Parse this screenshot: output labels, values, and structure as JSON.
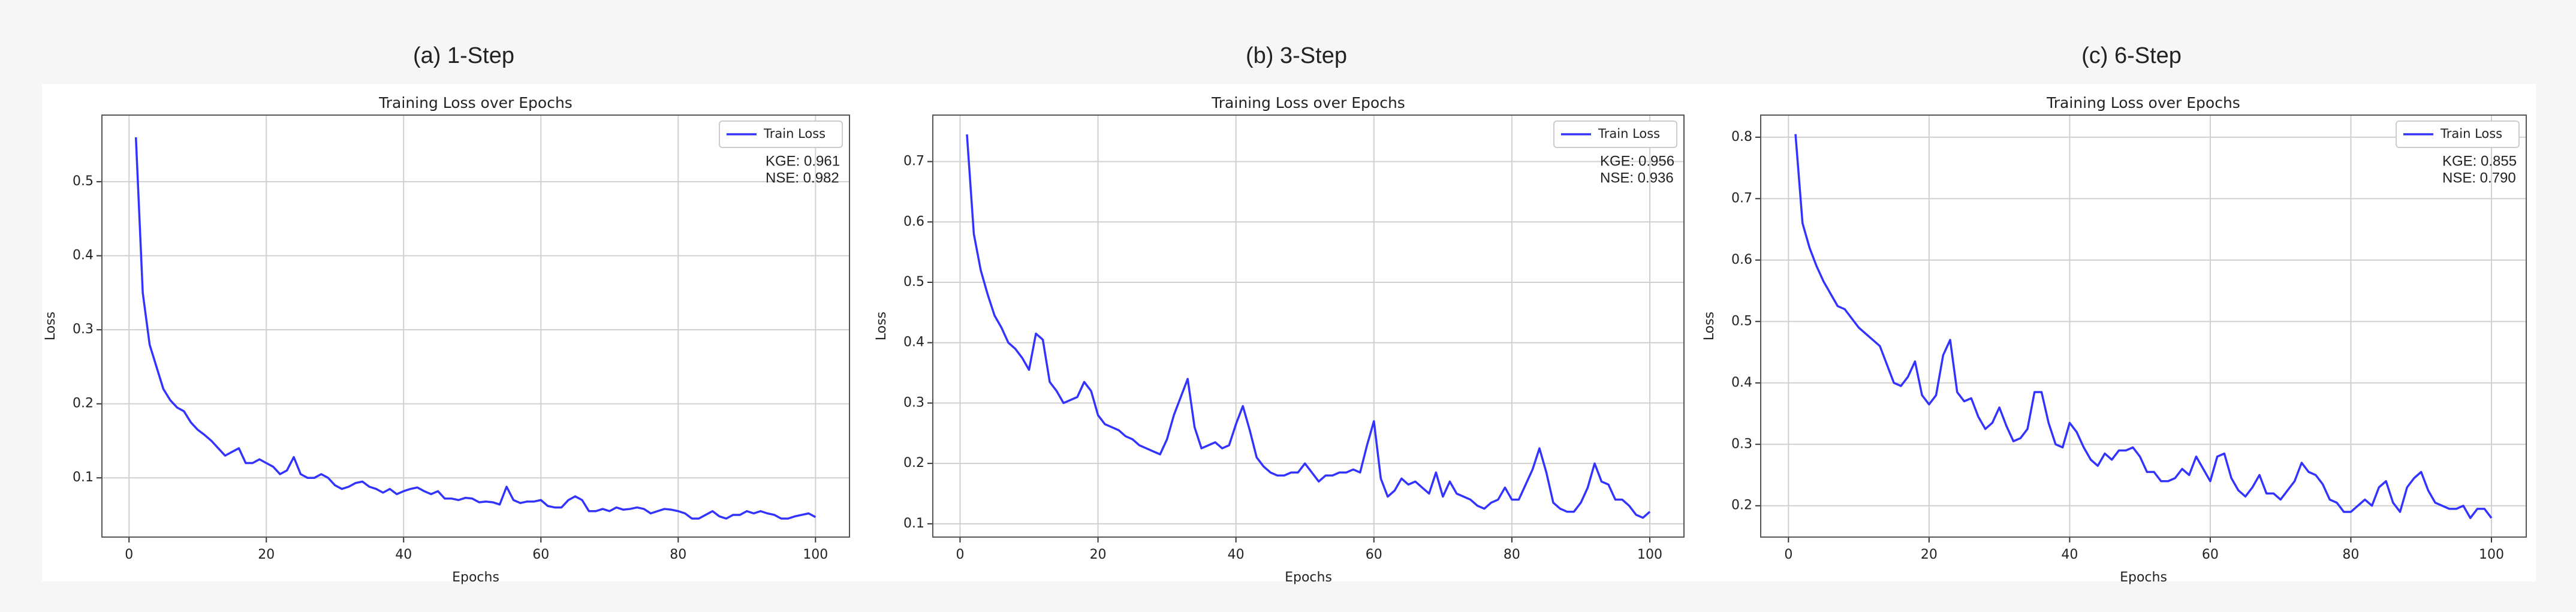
{
  "chart_data": [
    {
      "type": "line",
      "panel_label": "(a) 1-Step",
      "title": "Training Loss over Epochs",
      "xlabel": "Epochs",
      "ylabel": "Loss",
      "x": [
        1,
        2,
        3,
        4,
        5,
        6,
        7,
        8,
        9,
        10,
        11,
        12,
        13,
        14,
        15,
        16,
        17,
        18,
        19,
        20,
        21,
        22,
        23,
        24,
        25,
        26,
        27,
        28,
        29,
        30,
        31,
        32,
        33,
        34,
        35,
        36,
        37,
        38,
        39,
        40,
        41,
        42,
        43,
        44,
        45,
        46,
        47,
        48,
        49,
        50,
        51,
        52,
        53,
        54,
        55,
        56,
        57,
        58,
        59,
        60,
        61,
        62,
        63,
        64,
        65,
        66,
        67,
        68,
        69,
        70,
        71,
        72,
        73,
        74,
        75,
        76,
        77,
        78,
        79,
        80,
        81,
        82,
        83,
        84,
        85,
        86,
        87,
        88,
        89,
        90,
        91,
        92,
        93,
        94,
        95,
        96,
        97,
        98,
        99,
        100
      ],
      "series": [
        {
          "name": "Train Loss",
          "color": "#3333ff",
          "values": [
            0.56,
            0.35,
            0.28,
            0.25,
            0.22,
            0.205,
            0.195,
            0.19,
            0.175,
            0.165,
            0.158,
            0.15,
            0.14,
            0.13,
            0.135,
            0.14,
            0.12,
            0.12,
            0.125,
            0.12,
            0.115,
            0.105,
            0.11,
            0.128,
            0.105,
            0.1,
            0.1,
            0.105,
            0.1,
            0.09,
            0.085,
            0.088,
            0.093,
            0.095,
            0.088,
            0.085,
            0.08,
            0.085,
            0.078,
            0.082,
            0.085,
            0.087,
            0.082,
            0.078,
            0.082,
            0.072,
            0.072,
            0.07,
            0.073,
            0.072,
            0.067,
            0.068,
            0.067,
            0.064,
            0.088,
            0.07,
            0.066,
            0.068,
            0.068,
            0.07,
            0.062,
            0.06,
            0.06,
            0.07,
            0.075,
            0.07,
            0.055,
            0.055,
            0.058,
            0.055,
            0.06,
            0.057,
            0.058,
            0.06,
            0.058,
            0.052,
            0.055,
            0.058,
            0.057,
            0.055,
            0.052,
            0.045,
            0.045,
            0.05,
            0.055,
            0.048,
            0.045,
            0.05,
            0.05,
            0.055,
            0.052,
            0.055,
            0.052,
            0.05,
            0.045,
            0.045,
            0.048,
            0.05,
            0.052,
            0.047
          ]
        }
      ],
      "annotations": [
        "KGE: 0.961",
        "NSE: 0.982"
      ],
      "xlim": [
        -3.95,
        104.95
      ],
      "ylim": [
        0.02,
        0.59
      ],
      "xticks": [
        0,
        20,
        40,
        60,
        80,
        100
      ],
      "yticks": [
        0.1,
        0.2,
        0.3,
        0.4,
        0.5
      ],
      "grid": true,
      "legend": "upper right"
    },
    {
      "type": "line",
      "panel_label": "(b) 3-Step",
      "title": "Training Loss over Epochs",
      "xlabel": "Epochs",
      "ylabel": "Loss",
      "x": [
        1,
        2,
        3,
        4,
        5,
        6,
        7,
        8,
        9,
        10,
        11,
        12,
        13,
        14,
        15,
        16,
        17,
        18,
        19,
        20,
        21,
        22,
        23,
        24,
        25,
        26,
        27,
        28,
        29,
        30,
        31,
        32,
        33,
        34,
        35,
        36,
        37,
        38,
        39,
        40,
        41,
        42,
        43,
        44,
        45,
        46,
        47,
        48,
        49,
        50,
        51,
        52,
        53,
        54,
        55,
        56,
        57,
        58,
        59,
        60,
        61,
        62,
        63,
        64,
        65,
        66,
        67,
        68,
        69,
        70,
        71,
        72,
        73,
        74,
        75,
        76,
        77,
        78,
        79,
        80,
        81,
        82,
        83,
        84,
        85,
        86,
        87,
        88,
        89,
        90,
        91,
        92,
        93,
        94,
        95,
        96,
        97,
        98,
        99,
        100
      ],
      "series": [
        {
          "name": "Train Loss",
          "color": "#3333ff",
          "values": [
            0.745,
            0.58,
            0.52,
            0.48,
            0.445,
            0.425,
            0.4,
            0.39,
            0.375,
            0.355,
            0.415,
            0.405,
            0.335,
            0.32,
            0.3,
            0.305,
            0.31,
            0.335,
            0.32,
            0.28,
            0.265,
            0.26,
            0.255,
            0.245,
            0.24,
            0.23,
            0.225,
            0.22,
            0.215,
            0.24,
            0.28,
            0.31,
            0.34,
            0.26,
            0.225,
            0.23,
            0.235,
            0.225,
            0.23,
            0.265,
            0.295,
            0.255,
            0.21,
            0.195,
            0.185,
            0.18,
            0.18,
            0.185,
            0.185,
            0.2,
            0.185,
            0.17,
            0.18,
            0.18,
            0.185,
            0.185,
            0.19,
            0.185,
            0.23,
            0.27,
            0.175,
            0.145,
            0.155,
            0.175,
            0.165,
            0.17,
            0.16,
            0.15,
            0.185,
            0.145,
            0.17,
            0.15,
            0.145,
            0.14,
            0.13,
            0.125,
            0.135,
            0.14,
            0.16,
            0.14,
            0.14,
            0.165,
            0.19,
            0.225,
            0.185,
            0.135,
            0.125,
            0.12,
            0.12,
            0.135,
            0.16,
            0.2,
            0.17,
            0.165,
            0.14,
            0.14,
            0.13,
            0.115,
            0.11,
            0.12
          ]
        }
      ],
      "annotations": [
        "KGE: 0.956",
        "NSE: 0.936"
      ],
      "xlim": [
        -3.95,
        104.95
      ],
      "ylim": [
        0.078,
        0.777
      ],
      "xticks": [
        0,
        20,
        40,
        60,
        80,
        100
      ],
      "yticks": [
        0.1,
        0.2,
        0.3,
        0.4,
        0.5,
        0.6,
        0.7
      ],
      "grid": true,
      "legend": "upper right"
    },
    {
      "type": "line",
      "panel_label": "(c) 6-Step",
      "title": "Training Loss over Epochs",
      "xlabel": "Epochs",
      "ylabel": "Loss",
      "x": [
        1,
        2,
        3,
        4,
        5,
        6,
        7,
        8,
        9,
        10,
        11,
        12,
        13,
        14,
        15,
        16,
        17,
        18,
        19,
        20,
        21,
        22,
        23,
        24,
        25,
        26,
        27,
        28,
        29,
        30,
        31,
        32,
        33,
        34,
        35,
        36,
        37,
        38,
        39,
        40,
        41,
        42,
        43,
        44,
        45,
        46,
        47,
        48,
        49,
        50,
        51,
        52,
        53,
        54,
        55,
        56,
        57,
        58,
        59,
        60,
        61,
        62,
        63,
        64,
        65,
        66,
        67,
        68,
        69,
        70,
        71,
        72,
        73,
        74,
        75,
        76,
        77,
        78,
        79,
        80,
        81,
        82,
        83,
        84,
        85,
        86,
        87,
        88,
        89,
        90,
        91,
        92,
        93,
        94,
        95,
        96,
        97,
        98,
        99,
        100
      ],
      "series": [
        {
          "name": "Train Loss",
          "color": "#3333ff",
          "values": [
            0.805,
            0.66,
            0.62,
            0.59,
            0.565,
            0.545,
            0.525,
            0.52,
            0.505,
            0.49,
            0.48,
            0.47,
            0.46,
            0.43,
            0.4,
            0.395,
            0.41,
            0.435,
            0.38,
            0.365,
            0.38,
            0.445,
            0.47,
            0.385,
            0.37,
            0.375,
            0.345,
            0.325,
            0.335,
            0.36,
            0.33,
            0.305,
            0.31,
            0.325,
            0.385,
            0.385,
            0.335,
            0.3,
            0.295,
            0.335,
            0.32,
            0.295,
            0.275,
            0.265,
            0.285,
            0.275,
            0.29,
            0.29,
            0.295,
            0.28,
            0.255,
            0.255,
            0.24,
            0.24,
            0.245,
            0.26,
            0.25,
            0.28,
            0.26,
            0.24,
            0.28,
            0.285,
            0.245,
            0.225,
            0.215,
            0.23,
            0.25,
            0.22,
            0.22,
            0.21,
            0.225,
            0.24,
            0.27,
            0.255,
            0.25,
            0.235,
            0.21,
            0.205,
            0.19,
            0.19,
            0.2,
            0.21,
            0.2,
            0.23,
            0.24,
            0.205,
            0.19,
            0.23,
            0.245,
            0.255,
            0.225,
            0.205,
            0.2,
            0.195,
            0.195,
            0.2,
            0.18,
            0.195,
            0.195,
            0.18
          ]
        }
      ],
      "annotations": [
        "KGE: 0.855",
        "NSE: 0.790"
      ],
      "xlim": [
        -3.95,
        104.95
      ],
      "ylim": [
        0.149,
        0.836
      ],
      "xticks": [
        0,
        20,
        40,
        60,
        80,
        100
      ],
      "yticks": [
        0.2,
        0.3,
        0.4,
        0.5,
        0.6,
        0.7,
        0.8
      ],
      "grid": true,
      "legend": "upper right"
    }
  ]
}
